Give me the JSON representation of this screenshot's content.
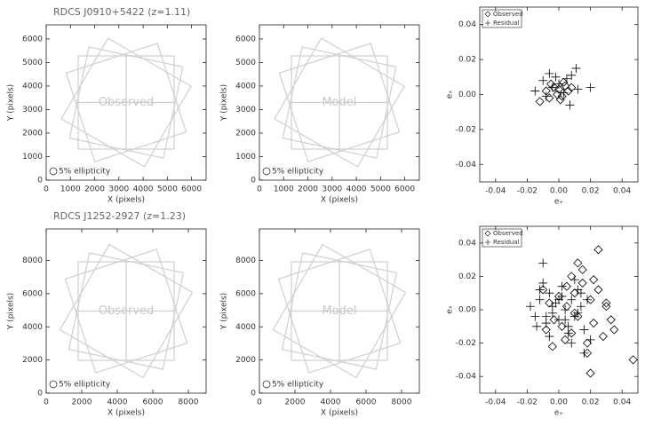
{
  "chart_data": [
    {
      "type": "map",
      "title": "RDCS J0910+5422 (z=1.11)",
      "label": "Observed",
      "legend_text": "5% ellipticity",
      "x_label": "X (pixels)",
      "y_label": "Y (pixels)",
      "xlim": [
        0,
        6600
      ],
      "ylim": [
        0,
        6600
      ],
      "xticks": [
        0,
        1000,
        2000,
        3000,
        4000,
        5000,
        6000
      ],
      "yticks": [
        0,
        1000,
        2000,
        3000,
        4000,
        5000,
        6000
      ]
    },
    {
      "type": "map",
      "label": "Model",
      "legend_text": "5% ellipticity",
      "x_label": "X (pixels)",
      "y_label": "Y (pixels)",
      "xlim": [
        0,
        6600
      ],
      "ylim": [
        0,
        6600
      ],
      "xticks": [
        0,
        1000,
        2000,
        3000,
        4000,
        5000,
        6000
      ],
      "yticks": [
        0,
        1000,
        2000,
        3000,
        4000,
        5000,
        6000
      ]
    },
    {
      "type": "scatter",
      "x_label": "e₊",
      "y_label": "eₓ",
      "xlim": [
        -0.05,
        0.05
      ],
      "ylim": [
        -0.05,
        0.05
      ],
      "xticks": [
        -0.04,
        -0.02,
        {
          "value": 0,
          "label": "0.00"
        },
        0.02,
        0.04
      ],
      "yticks": [
        -0.04,
        -0.02,
        {
          "value": 0,
          "label": "0.00"
        },
        0.02,
        0.04
      ],
      "series": [
        {
          "name": "Observed",
          "color": "#000000",
          "marker": "diamond",
          "x": [
            -0.012,
            -0.008,
            -0.005,
            -0.003,
            0,
            0.002,
            0.004,
            0.006,
            -0.001,
            0.003,
            -0.006,
            0.008,
            0.001
          ],
          "values": [
            -0.004,
            0.002,
            0.006,
            0.004,
            0.003,
            -0.001,
            0.005,
            0.002,
            0,
            0.007,
            -0.002,
            0.004,
            -0.003
          ]
        },
        {
          "name": "Residual",
          "color": "#000000",
          "marker": "plus",
          "x": [
            -0.015,
            -0.01,
            -0.006,
            -0.004,
            -0.002,
            0,
            0.003,
            0.005,
            0.008,
            0.011,
            0.012,
            0.02,
            0.007,
            -0.008
          ],
          "values": [
            0.002,
            0.008,
            0.012,
            0.004,
            0.01,
            0.006,
            0.001,
            0.009,
            0.011,
            0.015,
            0.003,
            0.004,
            -0.006,
            -0.001
          ]
        }
      ]
    },
    {
      "type": "map",
      "title": "RDCS J1252-2927 (z=1.23)",
      "label": "Observed",
      "legend_text": "5% ellipticity",
      "x_label": "X (pixels)",
      "y_label": "Y (pixels)",
      "xlim": [
        0,
        9000
      ],
      "ylim": [
        0,
        9900
      ],
      "xticks": [
        0,
        2000,
        4000,
        6000,
        8000
      ],
      "yticks": [
        0,
        2000,
        4000,
        6000,
        8000
      ]
    },
    {
      "type": "map",
      "label": "Model",
      "legend_text": "5% ellipticity",
      "x_label": "X (pixels)",
      "y_label": "Y (pixels)",
      "xlim": [
        0,
        9000
      ],
      "ylim": [
        0,
        9900
      ],
      "xticks": [
        0,
        2000,
        4000,
        6000,
        8000
      ],
      "yticks": [
        0,
        2000,
        4000,
        6000,
        8000
      ]
    },
    {
      "type": "scatter",
      "x_label": "e₊",
      "y_label": "eₓ",
      "xlim": [
        -0.05,
        0.05
      ],
      "ylim": [
        -0.05,
        0.05
      ],
      "xticks": [
        -0.04,
        -0.02,
        {
          "value": 0,
          "label": "0.00"
        },
        0.02,
        0.04
      ],
      "yticks": [
        -0.04,
        -0.02,
        {
          "value": 0,
          "label": "0.00"
        },
        0.02,
        0.04
      ],
      "series": [
        {
          "name": "Observed",
          "color": "#000000",
          "marker": "diamond",
          "x": [
            -0.01,
            -0.006,
            -0.003,
            0,
            0.002,
            0.005,
            0.008,
            0.01,
            0.012,
            0.015,
            0.018,
            0.02,
            0.022,
            0.025,
            0.028,
            0.03,
            0.033,
            0.035,
            0.047,
            0.02,
            0.015,
            0.008,
            0.004,
            -0.004,
            0.012,
            0.018,
            0.025,
            0.03,
            0.01,
            0.005,
            -0.008,
            0.022
          ],
          "values": [
            0.012,
            0.004,
            -0.006,
            0.008,
            -0.01,
            0.002,
            -0.014,
            0.01,
            -0.004,
            0.016,
            -0.02,
            0.006,
            -0.008,
            0.012,
            -0.016,
            0.004,
            -0.006,
            -0.012,
            -0.03,
            -0.038,
            0.024,
            0.02,
            -0.018,
            -0.022,
            0.028,
            -0.026,
            0.036,
            0.002,
            -0.002,
            0.014,
            -0.012,
            0.018
          ]
        },
        {
          "name": "Residual",
          "color": "#000000",
          "marker": "plus",
          "x": [
            -0.018,
            -0.015,
            -0.012,
            -0.01,
            -0.008,
            -0.006,
            -0.004,
            -0.002,
            0,
            0.002,
            0.004,
            0.006,
            0.008,
            0.01,
            0.012,
            0.014,
            0.016,
            0.018,
            0.02,
            -0.014,
            -0.006,
            0.002,
            0.01,
            -0.01,
            0.006,
            0.014,
            -0.004,
            0.004,
            0.012,
            -0.012,
            0.0,
            0.008,
            0.016,
            -0.008
          ],
          "values": [
            0.002,
            -0.004,
            0.006,
            0.016,
            -0.008,
            0.01,
            -0.002,
            0.004,
            -0.006,
            0.008,
            0.0,
            -0.01,
            0.006,
            -0.004,
            0.012,
            0.002,
            -0.012,
            0.006,
            -0.018,
            -0.01,
            -0.016,
            0.014,
            0.018,
            0.028,
            -0.014,
            0.01,
            0.002,
            -0.006,
            -0.002,
            0.012,
            0.006,
            -0.02,
            -0.026,
            -0.004
          ]
        }
      ]
    }
  ]
}
